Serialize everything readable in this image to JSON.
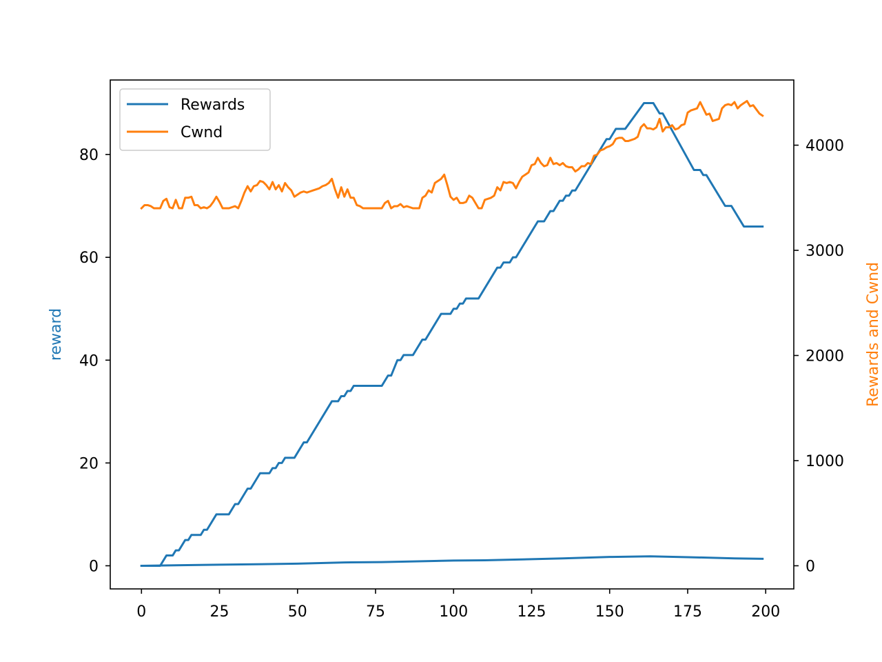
{
  "chart_data": {
    "type": "line",
    "title": "",
    "xlabel": "",
    "ylabel_left": "reward",
    "ylabel_right": "Rewards and Cwnd",
    "xlim": [
      -10,
      209
    ],
    "ylim_left": [
      -4.5,
      94.5
    ],
    "ylim_right": [
      -220,
      4620
    ],
    "xticks": [
      0,
      25,
      50,
      75,
      100,
      125,
      150,
      175,
      200
    ],
    "yticks_left": [
      0,
      20,
      40,
      60,
      80
    ],
    "yticks_right": [
      0,
      1000,
      2000,
      3000,
      4000
    ],
    "grid": false,
    "legend_position": "top-left",
    "colors": {
      "rewards": "#1f77b4",
      "cwnd": "#ff7f0e"
    },
    "series": [
      {
        "name": "Rewards",
        "axis": "left",
        "color": "#1f77b4",
        "points": [
          [
            0,
            0
          ],
          [
            6,
            0
          ],
          [
            8,
            2
          ],
          [
            10,
            2
          ],
          [
            11,
            3
          ],
          [
            12,
            3
          ],
          [
            14,
            5
          ],
          [
            15,
            5
          ],
          [
            16,
            6
          ],
          [
            19,
            6
          ],
          [
            20,
            7
          ],
          [
            21,
            7
          ],
          [
            24,
            10
          ],
          [
            28,
            10
          ],
          [
            30,
            12
          ],
          [
            31,
            12
          ],
          [
            34,
            15
          ],
          [
            35,
            15
          ],
          [
            38,
            18
          ],
          [
            41,
            18
          ],
          [
            42,
            19
          ],
          [
            43,
            19
          ],
          [
            44,
            20
          ],
          [
            45,
            20
          ],
          [
            46,
            21
          ],
          [
            49,
            21
          ],
          [
            52,
            24
          ],
          [
            53,
            24
          ],
          [
            61,
            32
          ],
          [
            63,
            32
          ],
          [
            64,
            33
          ],
          [
            65,
            33
          ],
          [
            66,
            34
          ],
          [
            67,
            34
          ],
          [
            68,
            35
          ],
          [
            77,
            35
          ],
          [
            79,
            37
          ],
          [
            80,
            37
          ],
          [
            82,
            40
          ],
          [
            83,
            40
          ],
          [
            84,
            41
          ],
          [
            87,
            41
          ],
          [
            90,
            44
          ],
          [
            91,
            44
          ],
          [
            96,
            49
          ],
          [
            99,
            49
          ],
          [
            100,
            50
          ],
          [
            101,
            50
          ],
          [
            102,
            51
          ],
          [
            103,
            51
          ],
          [
            104,
            52
          ],
          [
            108,
            52
          ],
          [
            114,
            58
          ],
          [
            115,
            58
          ],
          [
            116,
            59
          ],
          [
            118,
            59
          ],
          [
            119,
            60
          ],
          [
            120,
            60
          ],
          [
            127,
            67
          ],
          [
            129,
            67
          ],
          [
            131,
            69
          ],
          [
            132,
            69
          ],
          [
            134,
            71
          ],
          [
            135,
            71
          ],
          [
            136,
            72
          ],
          [
            137,
            72
          ],
          [
            138,
            73
          ],
          [
            139,
            73
          ],
          [
            149,
            83
          ],
          [
            150,
            83
          ],
          [
            152,
            85
          ],
          [
            155,
            85
          ],
          [
            161,
            90
          ],
          [
            164,
            90
          ],
          [
            166,
            88
          ],
          [
            167,
            88
          ],
          [
            177,
            77
          ],
          [
            179,
            77
          ],
          [
            180,
            76
          ],
          [
            181,
            76
          ],
          [
            187,
            70
          ],
          [
            189,
            70
          ],
          [
            193,
            66
          ],
          [
            199,
            66
          ]
        ]
      },
      {
        "name": "Cwnd",
        "axis": "right",
        "color": "#ff7f0e",
        "points": [
          [
            0,
            3400
          ],
          [
            1,
            3430
          ],
          [
            2,
            3430
          ],
          [
            3,
            3420
          ],
          [
            4,
            3400
          ],
          [
            5,
            3400
          ],
          [
            6,
            3400
          ],
          [
            7,
            3470
          ],
          [
            8,
            3490
          ],
          [
            9,
            3410
          ],
          [
            10,
            3400
          ],
          [
            11,
            3480
          ],
          [
            12,
            3400
          ],
          [
            13,
            3400
          ],
          [
            14,
            3500
          ],
          [
            15,
            3500
          ],
          [
            16,
            3510
          ],
          [
            17,
            3430
          ],
          [
            18,
            3430
          ],
          [
            19,
            3400
          ],
          [
            20,
            3410
          ],
          [
            21,
            3400
          ],
          [
            22,
            3420
          ],
          [
            23,
            3460
          ],
          [
            24,
            3510
          ],
          [
            25,
            3460
          ],
          [
            26,
            3400
          ],
          [
            27,
            3400
          ],
          [
            28,
            3400
          ],
          [
            29,
            3410
          ],
          [
            30,
            3420
          ],
          [
            31,
            3400
          ],
          [
            32,
            3470
          ],
          [
            33,
            3550
          ],
          [
            34,
            3610
          ],
          [
            35,
            3560
          ],
          [
            36,
            3610
          ],
          [
            37,
            3620
          ],
          [
            38,
            3660
          ],
          [
            39,
            3650
          ],
          [
            40,
            3620
          ],
          [
            41,
            3580
          ],
          [
            42,
            3650
          ],
          [
            43,
            3580
          ],
          [
            44,
            3620
          ],
          [
            45,
            3560
          ],
          [
            46,
            3640
          ],
          [
            47,
            3600
          ],
          [
            48,
            3570
          ],
          [
            49,
            3510
          ],
          [
            50,
            3530
          ],
          [
            51,
            3550
          ],
          [
            52,
            3560
          ],
          [
            53,
            3550
          ],
          [
            54,
            3560
          ],
          [
            55,
            3570
          ],
          [
            56,
            3580
          ],
          [
            57,
            3590
          ],
          [
            58,
            3610
          ],
          [
            59,
            3620
          ],
          [
            60,
            3640
          ],
          [
            61,
            3680
          ],
          [
            62,
            3580
          ],
          [
            63,
            3500
          ],
          [
            64,
            3600
          ],
          [
            65,
            3510
          ],
          [
            66,
            3580
          ],
          [
            67,
            3500
          ],
          [
            68,
            3500
          ],
          [
            69,
            3430
          ],
          [
            70,
            3420
          ],
          [
            71,
            3400
          ],
          [
            72,
            3400
          ],
          [
            73,
            3400
          ],
          [
            74,
            3400
          ],
          [
            75,
            3400
          ],
          [
            76,
            3400
          ],
          [
            77,
            3400
          ],
          [
            78,
            3450
          ],
          [
            79,
            3470
          ],
          [
            80,
            3400
          ],
          [
            81,
            3420
          ],
          [
            82,
            3420
          ],
          [
            83,
            3440
          ],
          [
            84,
            3410
          ],
          [
            85,
            3420
          ],
          [
            86,
            3410
          ],
          [
            87,
            3400
          ],
          [
            88,
            3400
          ],
          [
            89,
            3400
          ],
          [
            90,
            3500
          ],
          [
            91,
            3520
          ],
          [
            92,
            3570
          ],
          [
            93,
            3550
          ],
          [
            94,
            3640
          ],
          [
            95,
            3660
          ],
          [
            96,
            3680
          ],
          [
            97,
            3720
          ],
          [
            98,
            3620
          ],
          [
            99,
            3510
          ],
          [
            100,
            3480
          ],
          [
            101,
            3500
          ],
          [
            102,
            3450
          ],
          [
            103,
            3450
          ],
          [
            104,
            3460
          ],
          [
            105,
            3520
          ],
          [
            106,
            3500
          ],
          [
            107,
            3450
          ],
          [
            108,
            3400
          ],
          [
            109,
            3400
          ],
          [
            110,
            3480
          ],
          [
            111,
            3490
          ],
          [
            112,
            3500
          ],
          [
            113,
            3520
          ],
          [
            114,
            3600
          ],
          [
            115,
            3570
          ],
          [
            116,
            3650
          ],
          [
            117,
            3640
          ],
          [
            118,
            3650
          ],
          [
            119,
            3640
          ],
          [
            120,
            3590
          ],
          [
            121,
            3650
          ],
          [
            122,
            3700
          ],
          [
            123,
            3720
          ],
          [
            124,
            3740
          ],
          [
            125,
            3810
          ],
          [
            126,
            3820
          ],
          [
            127,
            3880
          ],
          [
            128,
            3830
          ],
          [
            129,
            3800
          ],
          [
            130,
            3810
          ],
          [
            131,
            3880
          ],
          [
            132,
            3820
          ],
          [
            133,
            3830
          ],
          [
            134,
            3810
          ],
          [
            135,
            3830
          ],
          [
            136,
            3800
          ],
          [
            137,
            3790
          ],
          [
            138,
            3790
          ],
          [
            139,
            3750
          ],
          [
            140,
            3770
          ],
          [
            141,
            3800
          ],
          [
            142,
            3800
          ],
          [
            143,
            3830
          ],
          [
            144,
            3820
          ],
          [
            145,
            3900
          ],
          [
            146,
            3910
          ],
          [
            147,
            3950
          ],
          [
            148,
            3960
          ],
          [
            149,
            3980
          ],
          [
            150,
            3990
          ],
          [
            151,
            4010
          ],
          [
            152,
            4060
          ],
          [
            153,
            4070
          ],
          [
            154,
            4070
          ],
          [
            155,
            4040
          ],
          [
            156,
            4040
          ],
          [
            157,
            4050
          ],
          [
            158,
            4060
          ],
          [
            159,
            4080
          ],
          [
            160,
            4170
          ],
          [
            161,
            4200
          ],
          [
            162,
            4160
          ],
          [
            163,
            4160
          ],
          [
            164,
            4150
          ],
          [
            165,
            4170
          ],
          [
            166,
            4250
          ],
          [
            167,
            4130
          ],
          [
            168,
            4170
          ],
          [
            169,
            4170
          ],
          [
            170,
            4190
          ],
          [
            171,
            4150
          ],
          [
            172,
            4160
          ],
          [
            173,
            4190
          ],
          [
            174,
            4200
          ],
          [
            175,
            4310
          ],
          [
            176,
            4330
          ],
          [
            177,
            4340
          ],
          [
            178,
            4350
          ],
          [
            179,
            4410
          ],
          [
            180,
            4350
          ],
          [
            181,
            4290
          ],
          [
            182,
            4300
          ],
          [
            183,
            4230
          ],
          [
            184,
            4240
          ],
          [
            185,
            4250
          ],
          [
            186,
            4350
          ],
          [
            187,
            4380
          ],
          [
            188,
            4390
          ],
          [
            189,
            4380
          ],
          [
            190,
            4410
          ],
          [
            191,
            4350
          ],
          [
            192,
            4380
          ],
          [
            193,
            4400
          ],
          [
            194,
            4420
          ],
          [
            195,
            4370
          ],
          [
            196,
            4380
          ],
          [
            197,
            4340
          ],
          [
            198,
            4300
          ],
          [
            199,
            4280
          ]
        ]
      },
      {
        "axis": "right",
        "color": "#1f77b4",
        "points": [
          [
            0,
            0
          ],
          [
            25,
            10
          ],
          [
            50,
            20
          ],
          [
            65,
            32
          ],
          [
            77,
            35
          ],
          [
            100,
            50
          ],
          [
            110,
            52
          ],
          [
            135,
            70
          ],
          [
            150,
            84
          ],
          [
            163,
            90
          ],
          [
            175,
            82
          ],
          [
            190,
            70
          ],
          [
            199,
            66
          ]
        ]
      }
    ]
  }
}
